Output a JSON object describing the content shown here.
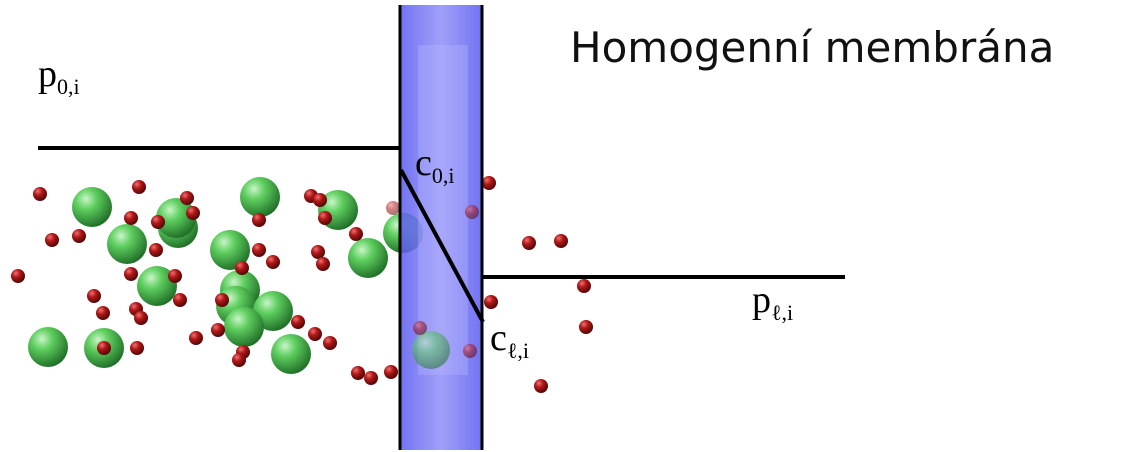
{
  "title": "Homogenní membrána",
  "labels": [
    {
      "main": "p",
      "sub": "0,i"
    },
    {
      "main": "c",
      "sub": "0,i"
    },
    {
      "main": "p",
      "sub": "ℓ,i"
    },
    {
      "main": "c",
      "sub": "ℓ,i"
    }
  ]
}
